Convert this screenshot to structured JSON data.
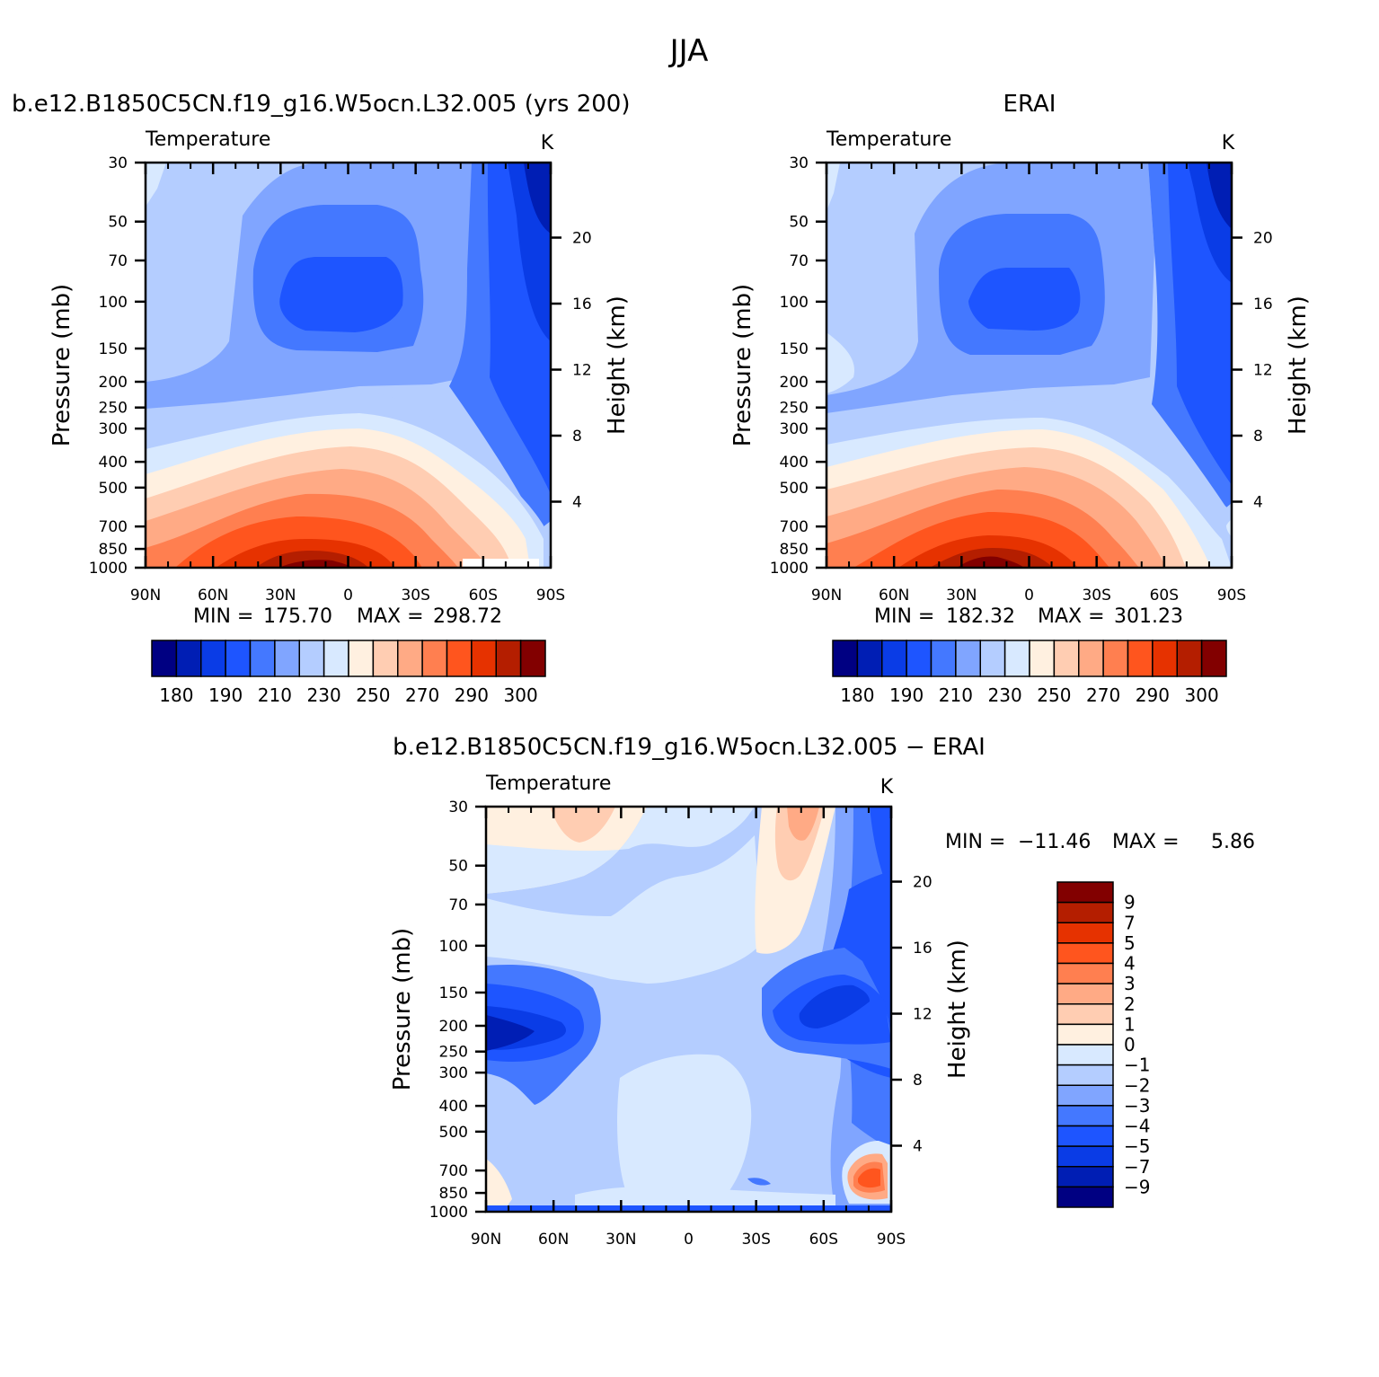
{
  "figure": {
    "title": "JJA"
  },
  "palette_absolute": [
    "#000082",
    "#001eb4",
    "#0a3ce6",
    "#1e55ff",
    "#4478ff",
    "#80a5ff",
    "#b4cdff",
    "#d8e9ff",
    "#fff0e0",
    "#ffcdb2",
    "#ffaa85",
    "#ff7f50",
    "#ff551e",
    "#e63200",
    "#b41e00",
    "#820000"
  ],
  "palette_diff": [
    "#000082",
    "#001eb4",
    "#0a3ce6",
    "#1e55ff",
    "#4478ff",
    "#80a5ff",
    "#b4cdff",
    "#d8e9ff",
    "#fff0e0",
    "#ffcdb2",
    "#ffaa85",
    "#ff7f50",
    "#ff551e",
    "#e63200",
    "#b41e00",
    "#820000"
  ],
  "panels": [
    {
      "id": "model",
      "left_title": "b.e12.B1850C5CN.f19_g16.W5ocn.L32.005 (yrs 200)",
      "center_title": "",
      "var": "Temperature",
      "units": "K",
      "min_label": "MIN =",
      "min_value": "175.70",
      "max_label": "MAX =",
      "max_value": "298.72"
    },
    {
      "id": "obs",
      "left_title": "",
      "center_title": "ERAI",
      "var": "Temperature",
      "units": "K",
      "min_label": "MIN =",
      "min_value": "182.32",
      "max_label": "MAX =",
      "max_value": "301.23"
    },
    {
      "id": "diff",
      "left_title": "",
      "center_title": "b.e12.B1850C5CN.f19_g16.W5ocn.L32.005 − ERAI",
      "var": "Temperature",
      "units": "K",
      "min_label": "MIN =",
      "min_value": "−11.46",
      "max_label": "MAX =",
      "max_value": "5.86"
    }
  ],
  "chart_data": [
    {
      "type": "contour",
      "name": "model",
      "xlabel": "",
      "ylabel": "Pressure (mb)",
      "y2label": "Height (km)",
      "x_ticks": [
        "90N",
        "60N",
        "30N",
        "0",
        "30S",
        "60S",
        "90S"
      ],
      "y_ticks": [
        "30",
        "50",
        "70",
        "100",
        "150",
        "200",
        "250",
        "300",
        "400",
        "500",
        "700",
        "850",
        "1000"
      ],
      "y2_ticks": [
        "20",
        "16",
        "12",
        "8",
        "4"
      ],
      "ylim": [
        1000,
        30
      ],
      "xlim": [
        90,
        -90
      ],
      "scale_y": "log",
      "colorbar_labels": [
        "180",
        "190",
        "210",
        "230",
        "250",
        "270",
        "290",
        "300"
      ],
      "colorbar_levels": [
        180,
        185,
        190,
        200,
        210,
        220,
        230,
        240,
        250,
        260,
        270,
        280,
        290,
        295,
        300
      ]
    },
    {
      "type": "contour",
      "name": "obs",
      "xlabel": "",
      "ylabel": "Pressure (mb)",
      "y2label": "Height (km)",
      "x_ticks": [
        "90N",
        "60N",
        "30N",
        "0",
        "30S",
        "60S",
        "90S"
      ],
      "y_ticks": [
        "30",
        "50",
        "70",
        "100",
        "150",
        "200",
        "250",
        "300",
        "400",
        "500",
        "700",
        "850",
        "1000"
      ],
      "y2_ticks": [
        "20",
        "16",
        "12",
        "8",
        "4"
      ],
      "ylim": [
        1000,
        30
      ],
      "xlim": [
        90,
        -90
      ],
      "scale_y": "log",
      "colorbar_labels": [
        "180",
        "190",
        "210",
        "230",
        "250",
        "270",
        "290",
        "300"
      ],
      "colorbar_levels": [
        180,
        185,
        190,
        200,
        210,
        220,
        230,
        240,
        250,
        260,
        270,
        280,
        290,
        295,
        300
      ]
    },
    {
      "type": "contour",
      "name": "diff",
      "xlabel": "",
      "ylabel": "Pressure (mb)",
      "y2label": "Height (km)",
      "x_ticks": [
        "90N",
        "60N",
        "30N",
        "0",
        "30S",
        "60S",
        "90S"
      ],
      "y_ticks": [
        "30",
        "50",
        "70",
        "100",
        "150",
        "200",
        "250",
        "300",
        "400",
        "500",
        "700",
        "850",
        "1000"
      ],
      "y2_ticks": [
        "20",
        "16",
        "12",
        "8",
        "4"
      ],
      "ylim": [
        1000,
        30
      ],
      "xlim": [
        90,
        -90
      ],
      "scale_y": "log",
      "colorbar_labels": [
        "9",
        "7",
        "5",
        "4",
        "3",
        "2",
        "1",
        "0",
        "−1",
        "−2",
        "−3",
        "−4",
        "−5",
        "−7",
        "−9"
      ],
      "colorbar_levels": [
        9,
        7,
        5,
        4,
        3,
        2,
        1,
        0,
        -1,
        -2,
        -3,
        -4,
        -5,
        -7,
        -9
      ]
    }
  ]
}
